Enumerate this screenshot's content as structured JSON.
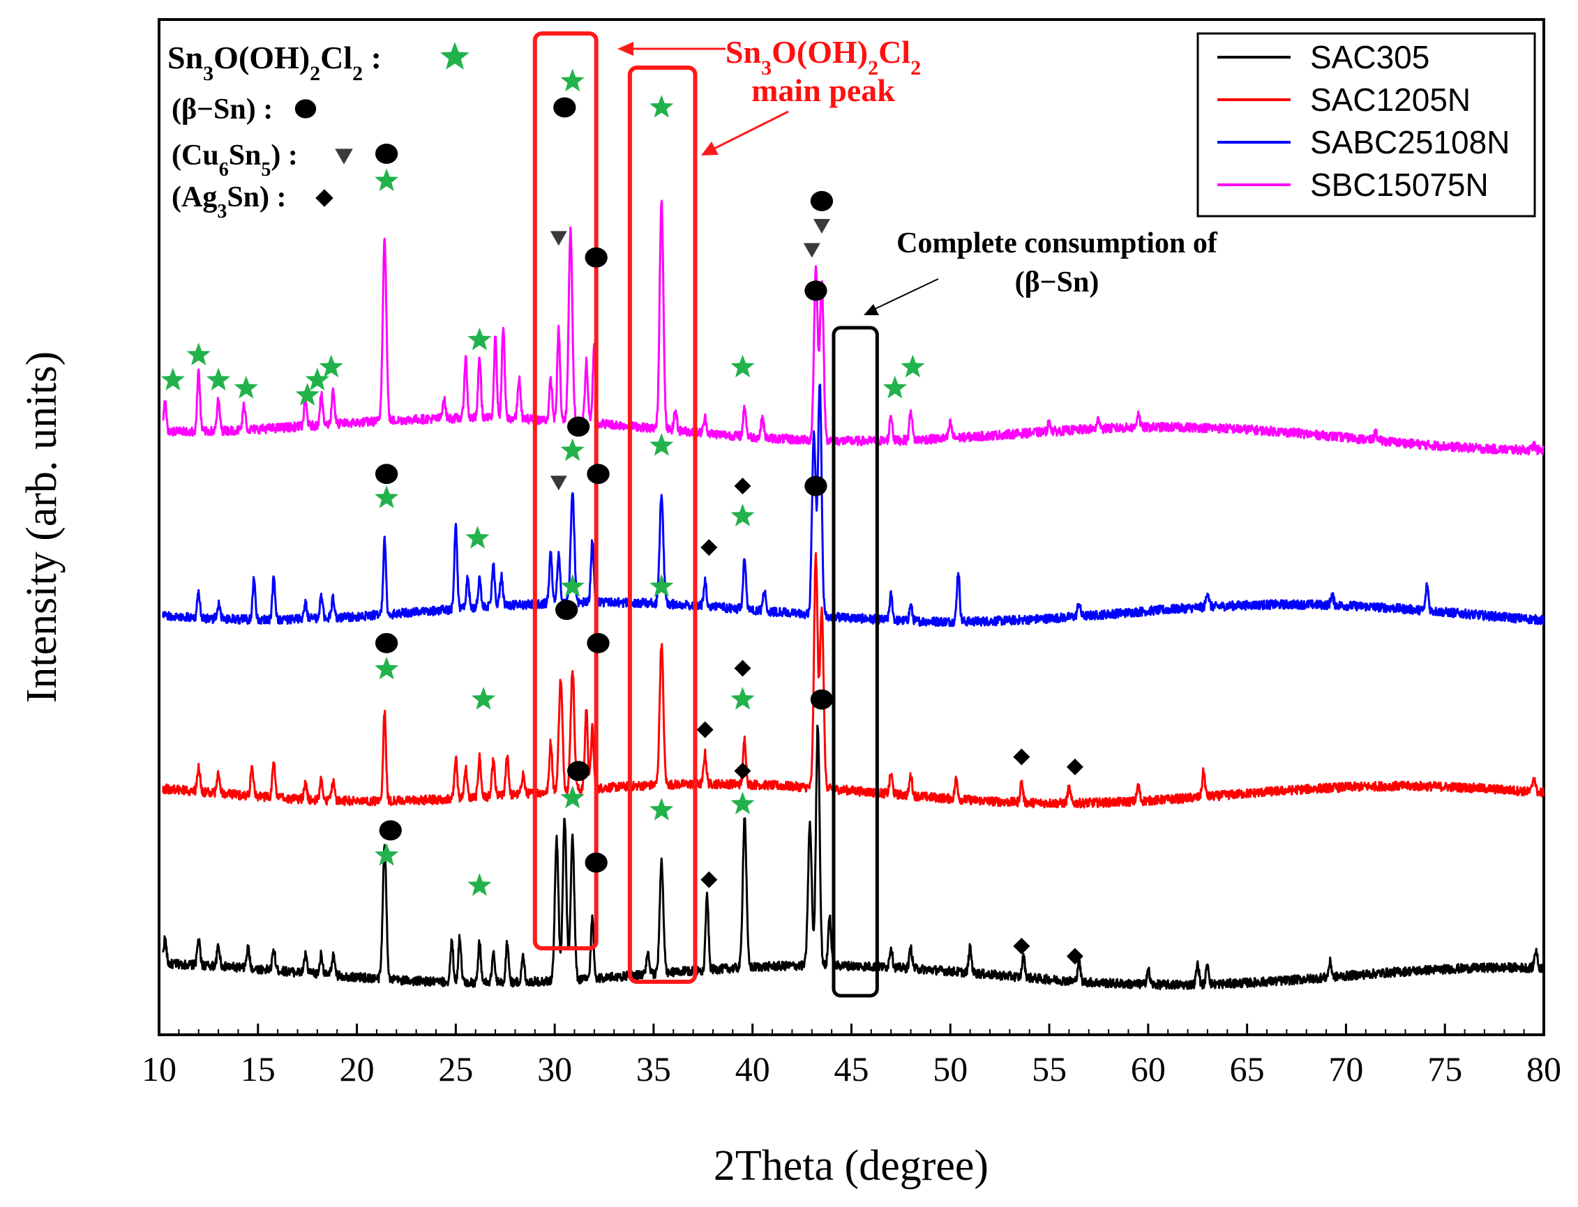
{
  "chart_data": {
    "type": "line",
    "title": "",
    "xlabel": "2Theta (degree)",
    "ylabel": "Intensity (arb. units)",
    "xlim": [
      10,
      80
    ],
    "ylim": [
      0,
      100
    ],
    "grid": false,
    "legend_position": "top-right",
    "x_ticks": [
      "10",
      "15",
      "20",
      "25",
      "30",
      "35",
      "40",
      "45",
      "50",
      "55",
      "60",
      "65",
      "70",
      "75",
      "80"
    ],
    "y_ticks_shown": false,
    "series": [
      {
        "name": "SAC305",
        "color": "#000000",
        "baseline": 6,
        "peaks": [
          [
            10.3,
            2.5
          ],
          [
            12.0,
            2.5
          ],
          [
            13.0,
            2
          ],
          [
            14.5,
            2
          ],
          [
            15.8,
            2
          ],
          [
            17.4,
            1.8
          ],
          [
            18.2,
            2
          ],
          [
            18.8,
            2
          ],
          [
            21.4,
            13
          ],
          [
            24.8,
            4
          ],
          [
            25.2,
            4.5
          ],
          [
            26.2,
            4
          ],
          [
            26.9,
            3
          ],
          [
            27.6,
            4
          ],
          [
            28.4,
            2.5
          ],
          [
            30.1,
            14
          ],
          [
            30.5,
            16
          ],
          [
            30.9,
            14
          ],
          [
            31.9,
            6
          ],
          [
            34.7,
            2
          ],
          [
            35.4,
            11
          ],
          [
            37.7,
            7.5
          ],
          [
            39.6,
            15
          ],
          [
            42.9,
            14
          ],
          [
            43.3,
            24
          ],
          [
            43.9,
            5
          ],
          [
            47.0,
            2
          ],
          [
            48.0,
            2
          ],
          [
            51.0,
            2.5
          ],
          [
            53.7,
            2
          ],
          [
            56.5,
            2
          ],
          [
            60.0,
            1.5
          ],
          [
            62.5,
            2
          ],
          [
            63.0,
            2
          ],
          [
            69.2,
            1.5
          ],
          [
            79.6,
            1.8
          ]
        ]
      },
      {
        "name": "SAC1205N",
        "color": "#ff0000",
        "baseline": 24,
        "peaks": [
          [
            12.0,
            2.5
          ],
          [
            13.0,
            2
          ],
          [
            14.7,
            3
          ],
          [
            15.8,
            3.5
          ],
          [
            17.4,
            1.5
          ],
          [
            18.2,
            2
          ],
          [
            18.8,
            2
          ],
          [
            21.4,
            9
          ],
          [
            25.0,
            4
          ],
          [
            25.5,
            3
          ],
          [
            26.2,
            4
          ],
          [
            26.9,
            3.5
          ],
          [
            27.6,
            4
          ],
          [
            28.4,
            2
          ],
          [
            29.8,
            5
          ],
          [
            30.3,
            11
          ],
          [
            30.9,
            12
          ],
          [
            31.6,
            8
          ],
          [
            31.9,
            6
          ],
          [
            35.4,
            14
          ],
          [
            37.6,
            3
          ],
          [
            39.6,
            4.5
          ],
          [
            43.2,
            23
          ],
          [
            43.5,
            18
          ],
          [
            47.0,
            2
          ],
          [
            48.0,
            2
          ],
          [
            50.3,
            2
          ],
          [
            53.6,
            2
          ],
          [
            56.0,
            1.5
          ],
          [
            59.5,
            1.5
          ],
          [
            62.8,
            2.5
          ],
          [
            79.5,
            1.5
          ]
        ]
      },
      {
        "name": "SABC25108N",
        "color": "#0000ff",
        "baseline": 42,
        "peaks": [
          [
            12.0,
            2.5
          ],
          [
            13.0,
            1.5
          ],
          [
            14.8,
            4
          ],
          [
            15.8,
            4
          ],
          [
            17.4,
            1.5
          ],
          [
            18.2,
            2
          ],
          [
            18.8,
            2
          ],
          [
            21.4,
            7.5
          ],
          [
            25.0,
            8.5
          ],
          [
            25.6,
            3
          ],
          [
            26.2,
            3
          ],
          [
            26.9,
            4
          ],
          [
            27.3,
            3
          ],
          [
            29.8,
            5
          ],
          [
            30.2,
            5
          ],
          [
            30.9,
            11
          ],
          [
            31.9,
            6
          ],
          [
            35.4,
            11
          ],
          [
            37.6,
            2.5
          ],
          [
            39.6,
            5
          ],
          [
            40.6,
            2
          ],
          [
            43.1,
            18
          ],
          [
            43.4,
            23
          ],
          [
            47.0,
            2.5
          ],
          [
            48.0,
            1.5
          ],
          [
            50.4,
            5
          ],
          [
            56.5,
            1.3
          ],
          [
            63.0,
            1.5
          ],
          [
            69.3,
            1
          ],
          [
            74.1,
            2.5
          ]
        ]
      },
      {
        "name": "SBC15075N",
        "color": "#ff00ff",
        "baseline": 60,
        "peaks": [
          [
            10.3,
            3
          ],
          [
            12.0,
            6
          ],
          [
            13.0,
            3
          ],
          [
            14.3,
            2.5
          ],
          [
            17.4,
            2.5
          ],
          [
            18.2,
            3
          ],
          [
            18.8,
            3.5
          ],
          [
            21.4,
            18
          ],
          [
            24.4,
            2
          ],
          [
            25.5,
            6
          ],
          [
            26.2,
            6
          ],
          [
            27.0,
            8
          ],
          [
            27.4,
            9
          ],
          [
            28.2,
            4
          ],
          [
            29.8,
            4
          ],
          [
            30.2,
            9
          ],
          [
            30.8,
            19
          ],
          [
            31.6,
            6
          ],
          [
            32.0,
            8
          ],
          [
            35.4,
            23
          ],
          [
            36.1,
            2
          ],
          [
            37.6,
            1.5
          ],
          [
            39.6,
            3
          ],
          [
            40.5,
            2
          ],
          [
            43.2,
            17
          ],
          [
            43.5,
            16
          ],
          [
            47.0,
            2.5
          ],
          [
            48.0,
            3
          ],
          [
            50.0,
            1.5
          ],
          [
            55.0,
            1
          ],
          [
            57.5,
            1
          ],
          [
            59.5,
            1.5
          ],
          [
            71.5,
            0.8
          ],
          [
            79.5,
            0.5
          ]
        ]
      }
    ],
    "legend": [
      "SAC305",
      "SAC1205N",
      "SABC25108N",
      "SBC15075N"
    ],
    "marker_key": [
      {
        "text": "Sn",
        "sub": "3",
        "text2": "O(OH)",
        "sub2": "2",
        "text3": "Cl",
        "sub3": "2",
        "text4": " :",
        "symbol": "star"
      },
      {
        "text": "(β−Sn) :",
        "symbol": "circle"
      },
      {
        "text": "(Cu",
        "sub": "6",
        "text2": "Sn",
        "sub2": "5",
        "text3": ") :",
        "symbol": "triangle"
      },
      {
        "text": "(Ag",
        "sub": "3",
        "text2": "Sn) :",
        "symbol": "diamond"
      }
    ],
    "annotations": {
      "main_peak_line1_a": "Sn",
      "main_peak_sub1": "3",
      "main_peak_line1_b": "O(OH)",
      "main_peak_sub2": "2",
      "main_peak_line1_c": "Cl",
      "main_peak_sub3": "2",
      "main_peak_line2": "main peak",
      "consumption_line1": "Complete consumption of",
      "consumption_line2": "(β−Sn)"
    },
    "highlight_boxes": [
      {
        "x_range": [
          29.0,
          32.1
        ],
        "color": "#ff1a1a",
        "label": "main_peak"
      },
      {
        "x_range": [
          33.8,
          37.1
        ],
        "color": "#ff1a1a",
        "label": "main_peak"
      },
      {
        "x_range": [
          44.1,
          46.3
        ],
        "color": "#000000",
        "label": "consumption"
      }
    ],
    "markers": [
      {
        "s": "star",
        "x": 10.7,
        "y": 65
      },
      {
        "s": "star",
        "x": 12.0,
        "y": 67.5
      },
      {
        "s": "star",
        "x": 13.0,
        "y": 65
      },
      {
        "s": "star",
        "x": 14.4,
        "y": 64.2
      },
      {
        "s": "star",
        "x": 17.5,
        "y": 63.5
      },
      {
        "s": "star",
        "x": 18.0,
        "y": 65
      },
      {
        "s": "star",
        "x": 18.7,
        "y": 66.3
      },
      {
        "s": "circle",
        "x": 21.5,
        "y": 87.5
      },
      {
        "s": "star",
        "x": 21.5,
        "y": 84.8
      },
      {
        "s": "star",
        "x": 26.2,
        "y": 69
      },
      {
        "s": "circle",
        "x": 30.5,
        "y": 92.1
      },
      {
        "s": "star",
        "x": 30.9,
        "y": 94.7
      },
      {
        "s": "triangle",
        "x": 30.2,
        "y": 79.2
      },
      {
        "s": "circle",
        "x": 32.1,
        "y": 77.2
      },
      {
        "s": "star",
        "x": 35.4,
        "y": 92.1
      },
      {
        "s": "circle",
        "x": 43.5,
        "y": 82.8
      },
      {
        "s": "triangle",
        "x": 43.5,
        "y": 80.4
      },
      {
        "s": "triangle",
        "x": 43.0,
        "y": 78
      },
      {
        "s": "circle",
        "x": 43.2,
        "y": 73.9
      },
      {
        "s": "star",
        "x": 39.5,
        "y": 66.3
      },
      {
        "s": "star",
        "x": 47.2,
        "y": 64.2
      },
      {
        "s": "star",
        "x": 48.1,
        "y": 66.3
      },
      {
        "s": "circle",
        "x": 31.2,
        "y": 60.4
      },
      {
        "s": "star",
        "x": 30.9,
        "y": 58
      },
      {
        "s": "star",
        "x": 35.4,
        "y": 58.5
      },
      {
        "s": "triangle",
        "x": 30.2,
        "y": 54.9
      },
      {
        "s": "circle",
        "x": 32.2,
        "y": 55.7
      },
      {
        "s": "circle",
        "x": 21.5,
        "y": 55.7
      },
      {
        "s": "star",
        "x": 21.5,
        "y": 53.3
      },
      {
        "s": "star",
        "x": 26.1,
        "y": 49.3
      },
      {
        "s": "diamond",
        "x": 39.5,
        "y": 54.5
      },
      {
        "s": "star",
        "x": 39.5,
        "y": 51.5
      },
      {
        "s": "circle",
        "x": 43.2,
        "y": 54.5
      },
      {
        "s": "diamond",
        "x": 37.8,
        "y": 48.4
      },
      {
        "s": "star",
        "x": 30.9,
        "y": 44.5
      },
      {
        "s": "star",
        "x": 35.4,
        "y": 44.5
      },
      {
        "s": "circle",
        "x": 30.6,
        "y": 42.2
      },
      {
        "s": "circle",
        "x": 32.2,
        "y": 38.9
      },
      {
        "s": "circle",
        "x": 21.5,
        "y": 38.9
      },
      {
        "s": "star",
        "x": 21.5,
        "y": 36.3
      },
      {
        "s": "star",
        "x": 26.4,
        "y": 33.3
      },
      {
        "s": "diamond",
        "x": 39.5,
        "y": 36.4
      },
      {
        "s": "star",
        "x": 39.5,
        "y": 33.3
      },
      {
        "s": "diamond",
        "x": 37.6,
        "y": 30.3
      },
      {
        "s": "circle",
        "x": 43.5,
        "y": 33.3
      },
      {
        "s": "diamond",
        "x": 53.6,
        "y": 27.6
      },
      {
        "s": "diamond",
        "x": 56.3,
        "y": 26.6
      },
      {
        "s": "circle",
        "x": 31.2,
        "y": 26.2
      },
      {
        "s": "star",
        "x": 30.9,
        "y": 23.5
      },
      {
        "s": "star",
        "x": 35.4,
        "y": 22.3
      },
      {
        "s": "diamond",
        "x": 39.5,
        "y": 26.2
      },
      {
        "s": "star",
        "x": 39.5,
        "y": 22.9
      },
      {
        "s": "circle",
        "x": 21.7,
        "y": 20.3
      },
      {
        "s": "star",
        "x": 21.5,
        "y": 17.8
      },
      {
        "s": "circle",
        "x": 32.1,
        "y": 17.1
      },
      {
        "s": "star",
        "x": 26.2,
        "y": 14.8
      },
      {
        "s": "diamond",
        "x": 37.8,
        "y": 15.4
      },
      {
        "s": "diamond",
        "x": 53.6,
        "y": 8.8
      },
      {
        "s": "diamond",
        "x": 56.3,
        "y": 7.8
      }
    ]
  }
}
